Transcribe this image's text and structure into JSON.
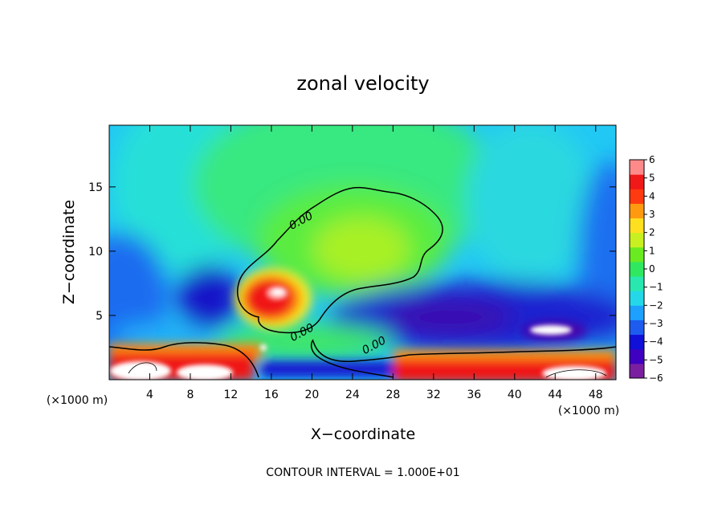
{
  "chart_data": {
    "type": "heatmap",
    "title": "zonal velocity",
    "xlabel": "X−coordinate",
    "ylabel": "Z−coordinate",
    "x_unit": "(×1000 m)",
    "y_unit": "(×1000 m)",
    "xlim": [
      0,
      50
    ],
    "ylim": [
      0,
      19.8
    ],
    "x_ticks": [
      4,
      8,
      12,
      16,
      20,
      24,
      28,
      32,
      36,
      40,
      44,
      48
    ],
    "y_ticks": [
      5,
      10,
      15
    ],
    "colorbar": {
      "levels": [
        "6",
        "5",
        "4",
        "3",
        "2",
        "1",
        "0",
        "−1",
        "−2",
        "−3",
        "−4",
        "−5",
        "−6"
      ],
      "min": -6,
      "max": 6,
      "colors": [
        "#7a1fa0",
        "#3f00c0",
        "#1010d8",
        "#1e5cf0",
        "#1ea0ff",
        "#24d8e8",
        "#28e8b0",
        "#30e860",
        "#6aea20",
        "#c8f020",
        "#ffe020",
        "#ff9a10",
        "#ff3a10",
        "#f01818",
        "#ff8a8a"
      ]
    },
    "contour_labels": [
      {
        "text": "0.00",
        "x": 18.9,
        "y": 12.4
      },
      {
        "text": "0.00",
        "x": 19.0,
        "y": 3.7
      },
      {
        "text": "0.00",
        "x": 26.1,
        "y": 2.7
      }
    ],
    "features": [
      {
        "name": "positive jet core",
        "x": 16.5,
        "y": 6.8,
        "value": 6
      },
      {
        "name": "upper positive region",
        "x": 23,
        "y": 10,
        "value": 1
      },
      {
        "name": "negative low-level band",
        "x": 36,
        "y": 5,
        "value": -5
      },
      {
        "name": "strong negative core",
        "x": 43.5,
        "y": 4,
        "value": -6
      },
      {
        "name": "left negative lobe",
        "x": 9,
        "y": 7,
        "value": -4
      }
    ],
    "contour_interval_note": "CONTOUR INTERVAL = 1.000E+01"
  }
}
